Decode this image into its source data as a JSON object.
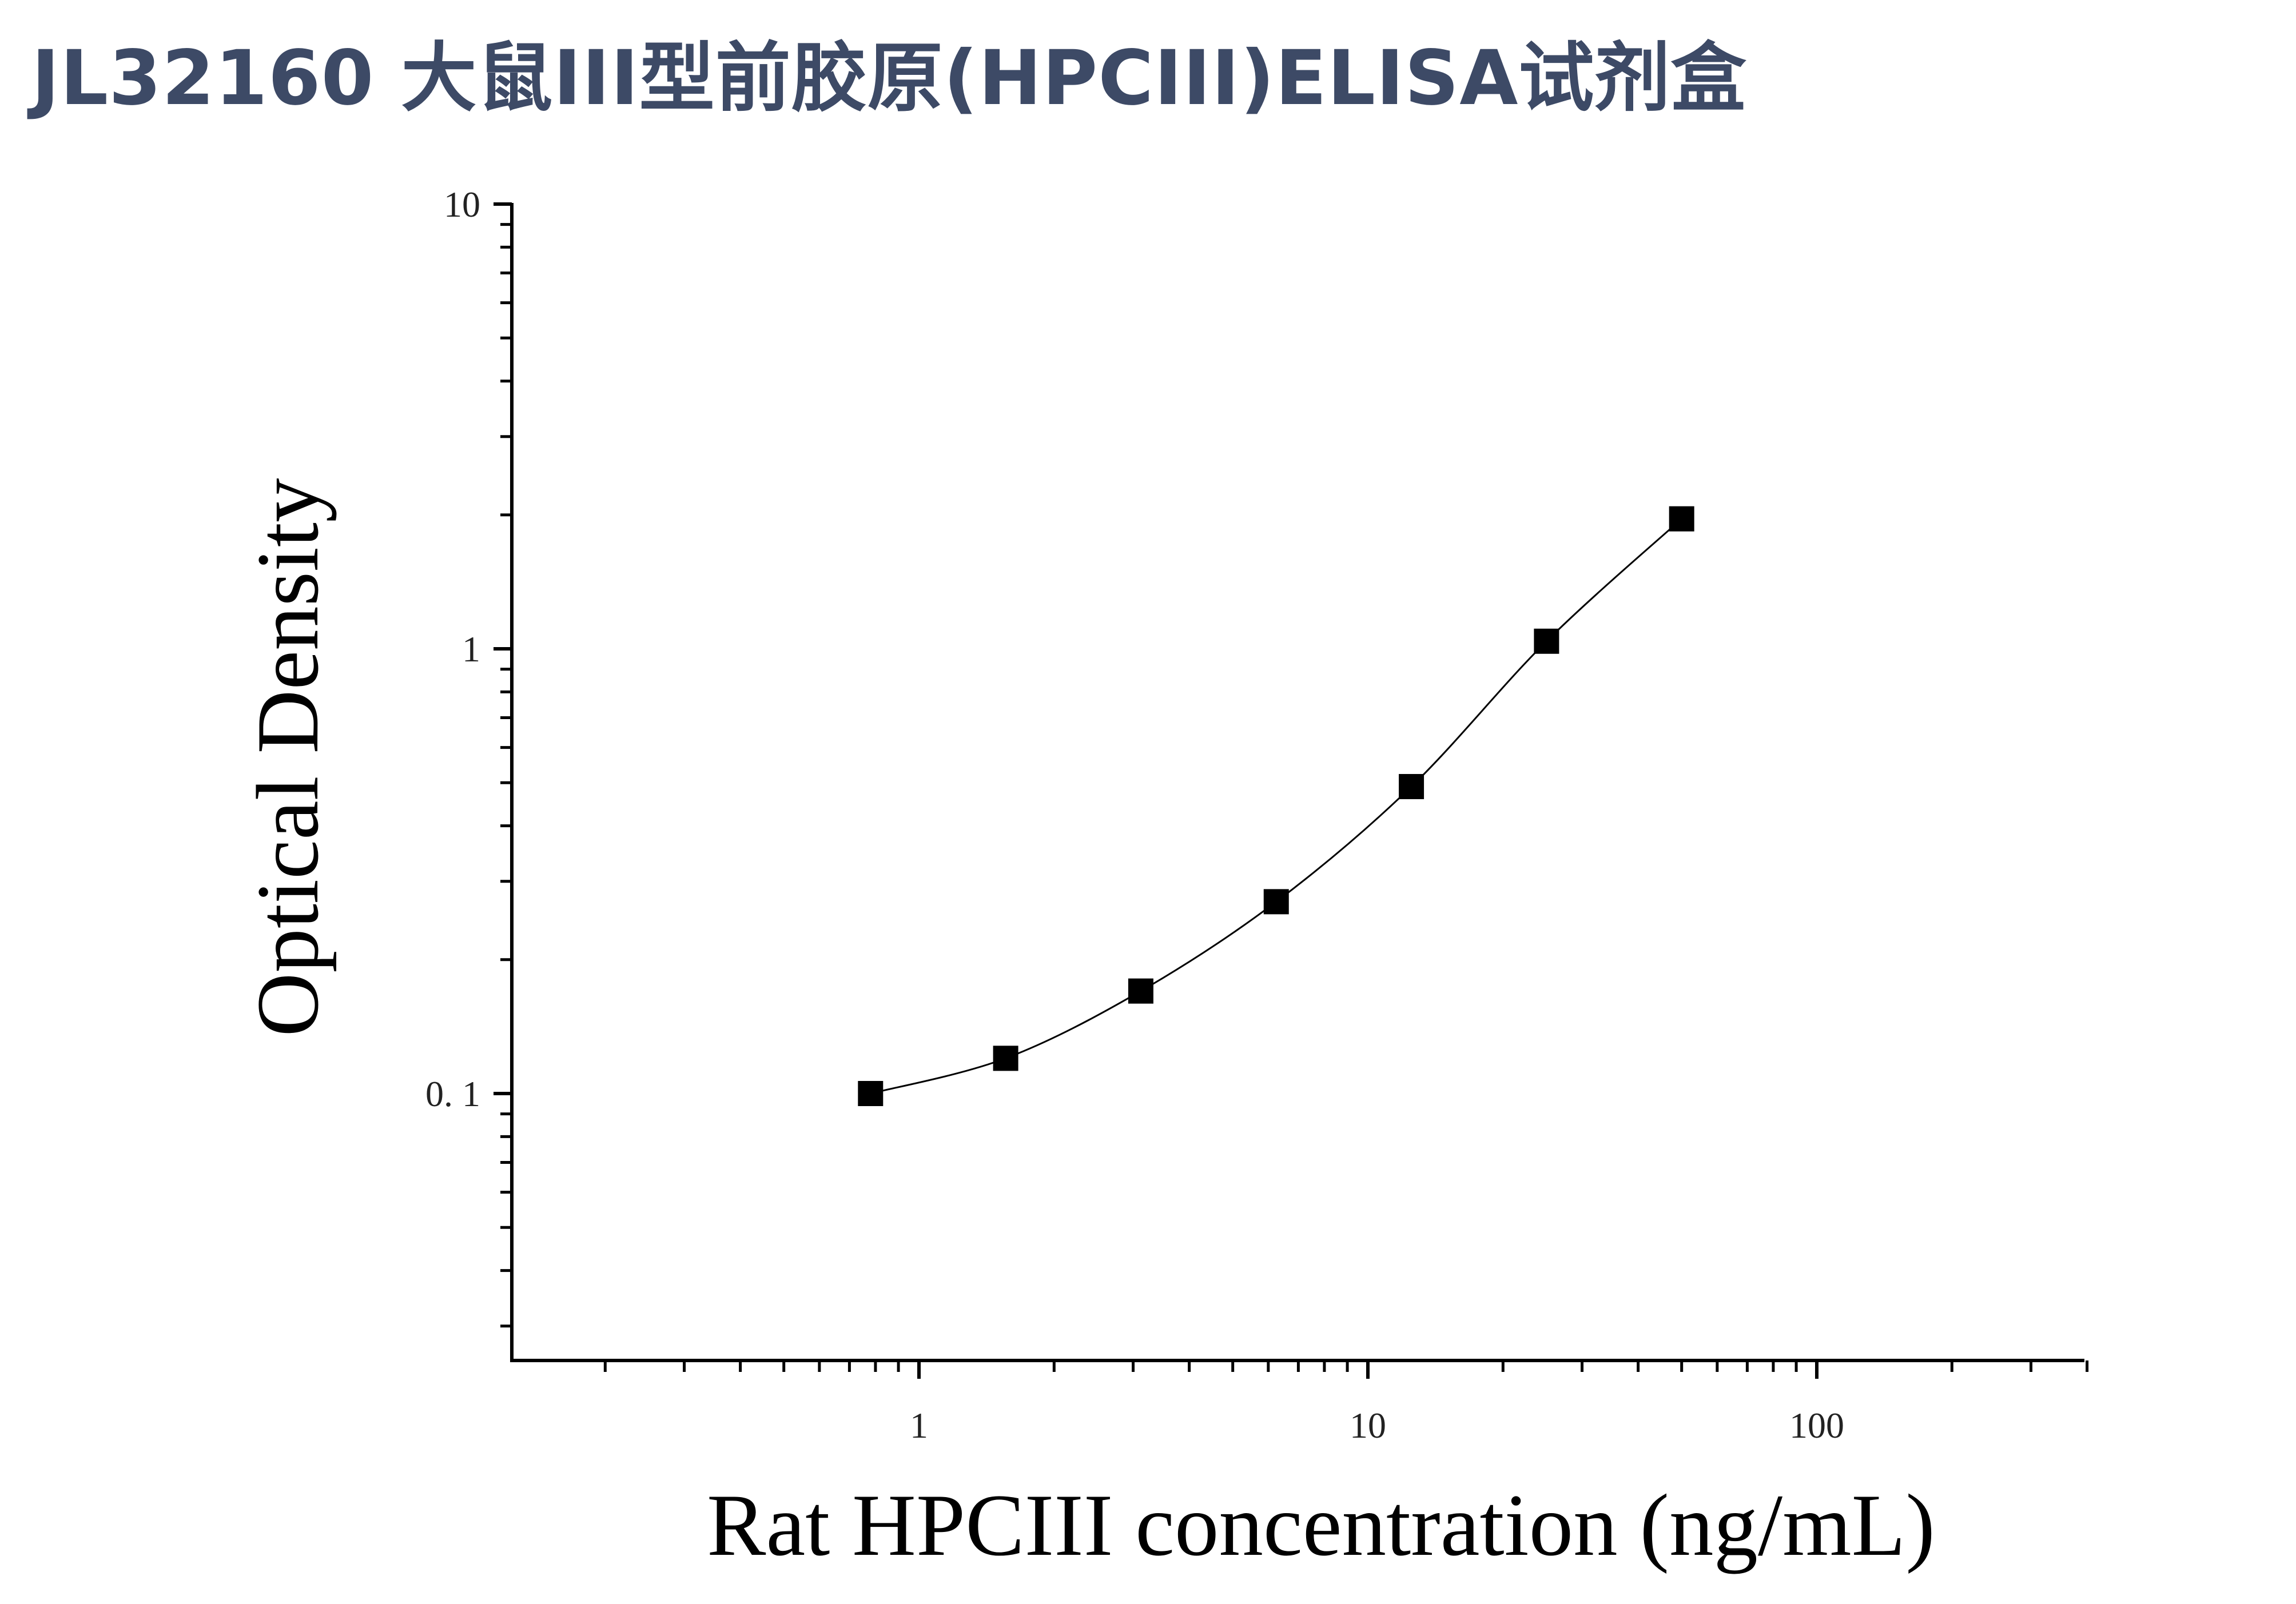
{
  "title": "JL32160 大鼠III型前胶原(HPCIII)ELISA试剂盒",
  "chart_data": {
    "type": "scatter",
    "title": "JL32160 大鼠III型前胶原(HPCIII)ELISA试剂盒",
    "xlabel": "Rat HPCIII concentration (ng/mL)",
    "ylabel": "Optical Density",
    "x_scale": "log",
    "y_scale": "log",
    "xlim": [
      0.1,
      400
    ],
    "ylim": [
      0.025,
      10
    ],
    "x_ticks": [
      {
        "value": 1,
        "label": "1"
      },
      {
        "value": 10,
        "label": "10"
      },
      {
        "value": 100,
        "label": "100"
      }
    ],
    "y_ticks": [
      {
        "value": 0.1,
        "label": "0. 1"
      },
      {
        "value": 1,
        "label": "1"
      },
      {
        "value": 10,
        "label": "10"
      }
    ],
    "grid": false,
    "legend": "none",
    "series": [
      {
        "x": [
          0.78,
          1.56,
          3.12,
          6.25,
          12.5,
          25,
          50
        ],
        "y": [
          0.1,
          0.12,
          0.17,
          0.27,
          0.49,
          1.04,
          1.96
        ],
        "marker": "square",
        "color": "#000000",
        "fit_line": true
      }
    ]
  }
}
